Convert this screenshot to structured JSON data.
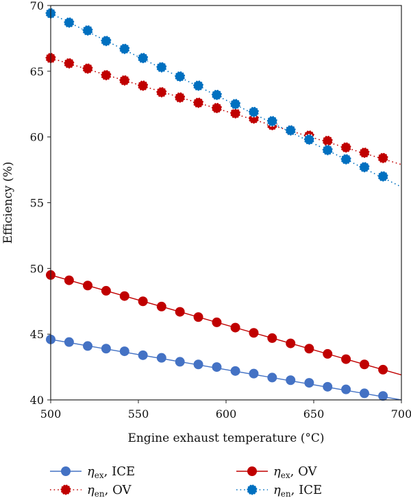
{
  "chart_data": {
    "type": "line",
    "title": "",
    "xlabel": "Engine exhaust temperature (°C)",
    "ylabel": "Efficiency (%)",
    "xlim": [
      500,
      700
    ],
    "ylim": [
      40,
      70
    ],
    "xticks": [
      "500",
      "550",
      "600",
      "650",
      "700"
    ],
    "yticks": [
      "40",
      "45",
      "50",
      "55",
      "60",
      "65",
      "70"
    ],
    "grid": false,
    "legend_position": "bottom",
    "series": [
      {
        "name": "η_ex, ICE",
        "symbol": "η",
        "subscript": "ex",
        "suffix": ", ICE",
        "color": "#4472c4",
        "line_style": "solid",
        "line_end": [
          500,
          44.6,
          700,
          40.0
        ],
        "x": [
          500,
          510.5,
          521.1,
          531.6,
          542.1,
          552.6,
          563.2,
          573.7,
          584.2,
          594.7,
          605.3,
          615.8,
          626.3,
          636.8,
          647.4,
          657.9,
          668.4,
          678.9,
          689.5
        ],
        "values": [
          44.6,
          44.4,
          44.1,
          43.9,
          43.7,
          43.4,
          43.2,
          42.9,
          42.7,
          42.5,
          42.2,
          42.0,
          41.7,
          41.5,
          41.3,
          41.0,
          40.8,
          40.5,
          40.3
        ]
      },
      {
        "name": "η_ex, OV",
        "symbol": "η",
        "subscript": "ex",
        "suffix": ", OV",
        "color": "#c00000",
        "line_style": "solid",
        "line_end": [
          500,
          49.5,
          700,
          41.9
        ],
        "x": [
          500,
          510.5,
          521.1,
          531.6,
          542.1,
          552.6,
          563.2,
          573.7,
          584.2,
          594.7,
          605.3,
          615.8,
          626.3,
          636.8,
          647.4,
          657.9,
          668.4,
          678.9,
          689.5
        ],
        "values": [
          49.5,
          49.1,
          48.7,
          48.3,
          47.9,
          47.5,
          47.1,
          46.7,
          46.3,
          45.9,
          45.5,
          45.1,
          44.7,
          44.3,
          43.9,
          43.5,
          43.1,
          42.7,
          42.3
        ]
      },
      {
        "name": "η_en, OV",
        "symbol": "η",
        "subscript": "en",
        "suffix": ", OV",
        "color": "#c00000",
        "line_style": "dotted",
        "line_end": [
          500,
          66.0,
          700,
          57.9
        ],
        "x": [
          500,
          510.5,
          521.1,
          531.6,
          542.1,
          552.6,
          563.2,
          573.7,
          584.2,
          594.7,
          605.3,
          615.8,
          626.3,
          636.8,
          647.4,
          657.9,
          668.4,
          678.9,
          689.5
        ],
        "values": [
          66.0,
          65.6,
          65.2,
          64.7,
          64.3,
          63.9,
          63.4,
          63.0,
          62.6,
          62.2,
          61.8,
          61.4,
          60.9,
          60.5,
          60.1,
          59.7,
          59.2,
          58.8,
          58.4
        ]
      },
      {
        "name": "η_en, ICE",
        "symbol": "η",
        "subscript": "en",
        "suffix": ", ICE",
        "color": "#0070c0",
        "line_style": "dotted",
        "line_end": [
          500,
          69.4,
          700,
          56.2
        ],
        "x": [
          500,
          510.5,
          521.1,
          531.6,
          542.1,
          552.6,
          563.2,
          573.7,
          584.2,
          594.7,
          605.3,
          615.8,
          626.3,
          636.8,
          647.4,
          657.9,
          668.4,
          678.9,
          689.5
        ],
        "values": [
          69.4,
          68.7,
          68.1,
          67.3,
          66.7,
          66.0,
          65.3,
          64.6,
          63.9,
          63.2,
          62.5,
          61.9,
          61.2,
          60.5,
          59.8,
          59.0,
          58.3,
          57.7,
          57.0
        ]
      }
    ]
  }
}
